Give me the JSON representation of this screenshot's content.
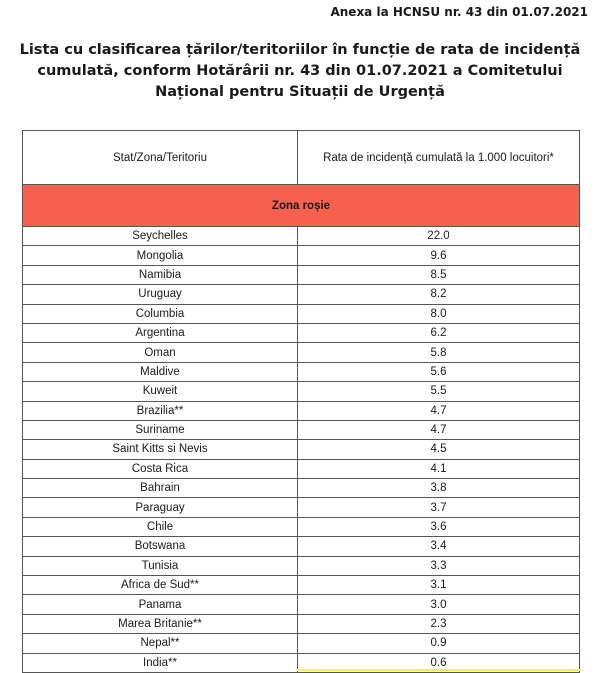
{
  "annex": "Anexa la HCNSU nr. 43 din 01.07.2021",
  "title_lines": [
    "Lista cu clasificarea țărilor/teritoriilor în funcție de rata de incidență",
    "cumulată, conform Hotărârii nr. 43 din 01.07.2021 a Comitetului",
    "Național pentru Situații de Urgență"
  ],
  "table": {
    "headers": [
      "Stat/Zona/Teritoriu",
      "Rata de incidență cumulată la 1.000 locuitori*"
    ],
    "zone_label": "Zona roșie",
    "zone_color": "#f5604f",
    "rows": [
      [
        "Seychelles",
        "22.0"
      ],
      [
        "Mongolia",
        "9.6"
      ],
      [
        "Namibia",
        "8.5"
      ],
      [
        "Uruguay",
        "8.2"
      ],
      [
        "Columbia",
        "8.0"
      ],
      [
        "Argentina",
        "6.2"
      ],
      [
        "Oman",
        "5.8"
      ],
      [
        "Maldive",
        "5.6"
      ],
      [
        "Kuweit",
        "5.5"
      ],
      [
        "Brazilia**",
        "4.7"
      ],
      [
        "Suriname",
        "4.7"
      ],
      [
        "Saint Kitts si Nevis",
        "4.5"
      ],
      [
        "Costa Rica",
        "4.1"
      ],
      [
        "Bahrain",
        "3.8"
      ],
      [
        "Paraguay",
        "3.7"
      ],
      [
        "Chile",
        "3.6"
      ],
      [
        "Botswana",
        "3.4"
      ],
      [
        "Tunisia",
        "3.3"
      ],
      [
        "Africa de Sud**",
        "3.1"
      ],
      [
        "Panama",
        "3.0"
      ],
      [
        "Marea Britanie**",
        "2.3"
      ],
      [
        "Nepal**",
        "0.9"
      ],
      [
        "India**",
        "0.6"
      ]
    ]
  }
}
